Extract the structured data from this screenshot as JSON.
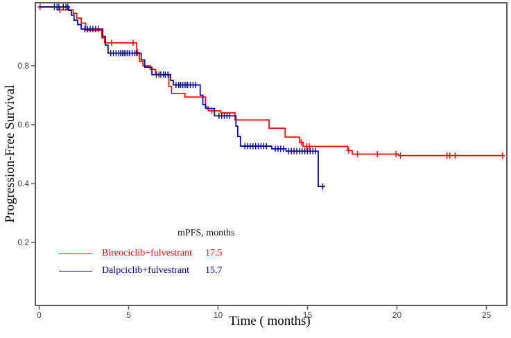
{
  "figure": {
    "background": "#ffffff",
    "frame_color": "#595959",
    "tick_label_color": "#3d3d3d"
  },
  "chart_data": {
    "type": "line",
    "subtype": "kaplan-meier-step",
    "title": "",
    "xlabel": "Time ( months)",
    "ylabel": "Progression-Free Survival",
    "xlim": [
      0,
      26.2
    ],
    "ylim": [
      0,
      1.02
    ],
    "x_ticks": [
      0,
      5,
      10,
      15,
      20,
      25
    ],
    "y_ticks": [
      0.2,
      0.4,
      0.6,
      0.8
    ],
    "grid": false,
    "legend": {
      "header": "mPFS, months",
      "position": "lower-left-inside",
      "entries": [
        {
          "name": "Bireociclib+fulvestrant",
          "mpfs": "17.5",
          "color": "#ff0000"
        },
        {
          "name": "Dalpciclib+fulvestrant",
          "mpfs": "15.7",
          "color": "#00008b"
        }
      ]
    },
    "series": [
      {
        "name": "Bireociclib+fulvestrant",
        "color": "#ff0000",
        "median_pfs_months": 17.5,
        "end": 25.9,
        "steps": [
          [
            0,
            1.0
          ],
          [
            1.0,
            0.99
          ],
          [
            1.9,
            0.978
          ],
          [
            2.1,
            0.962
          ],
          [
            2.35,
            0.945
          ],
          [
            2.6,
            0.92
          ],
          [
            3.5,
            0.895
          ],
          [
            3.65,
            0.878
          ],
          [
            5.45,
            0.845
          ],
          [
            5.6,
            0.815
          ],
          [
            5.8,
            0.8
          ],
          [
            6.2,
            0.788
          ],
          [
            6.5,
            0.77
          ],
          [
            7.25,
            0.73
          ],
          [
            7.4,
            0.706
          ],
          [
            8.15,
            0.694
          ],
          [
            9.3,
            0.66
          ],
          [
            9.45,
            0.647
          ],
          [
            10.15,
            0.64
          ],
          [
            10.95,
            0.616
          ],
          [
            12.85,
            0.588
          ],
          [
            13.75,
            0.558
          ],
          [
            14.55,
            0.54
          ],
          [
            14.75,
            0.526
          ],
          [
            17.25,
            0.512
          ],
          [
            17.5,
            0.5
          ],
          [
            20.1,
            0.495
          ]
        ],
        "censors": [
          [
            0.05,
            1.0
          ],
          [
            1.15,
            0.99
          ],
          [
            4.05,
            0.878
          ],
          [
            5.25,
            0.878
          ],
          [
            5.5,
            0.845
          ],
          [
            9.65,
            0.647
          ],
          [
            14.65,
            0.54
          ],
          [
            14.95,
            0.526
          ],
          [
            15.1,
            0.526
          ],
          [
            17.3,
            0.512
          ],
          [
            17.8,
            0.5
          ],
          [
            18.9,
            0.5
          ],
          [
            19.95,
            0.5
          ],
          [
            20.2,
            0.495
          ],
          [
            22.8,
            0.495
          ],
          [
            22.95,
            0.495
          ],
          [
            23.25,
            0.495
          ],
          [
            25.9,
            0.495
          ]
        ]
      },
      {
        "name": "Dalpciclib+fulvestrant",
        "color": "#00008b",
        "median_pfs_months": 15.7,
        "end": 15.9,
        "steps": [
          [
            0,
            1.0
          ],
          [
            1.65,
            0.988
          ],
          [
            1.8,
            0.972
          ],
          [
            1.95,
            0.955
          ],
          [
            2.15,
            0.94
          ],
          [
            2.35,
            0.925
          ],
          [
            3.55,
            0.9
          ],
          [
            3.7,
            0.87
          ],
          [
            3.85,
            0.843
          ],
          [
            5.7,
            0.82
          ],
          [
            5.9,
            0.795
          ],
          [
            6.3,
            0.77
          ],
          [
            7.35,
            0.75
          ],
          [
            7.5,
            0.735
          ],
          [
            9.0,
            0.7
          ],
          [
            9.15,
            0.668
          ],
          [
            9.3,
            0.655
          ],
          [
            9.8,
            0.63
          ],
          [
            11.0,
            0.595
          ],
          [
            11.1,
            0.56
          ],
          [
            11.25,
            0.527
          ],
          [
            13.0,
            0.518
          ],
          [
            13.8,
            0.51
          ],
          [
            15.6,
            0.39
          ]
        ],
        "censors": [
          [
            0.85,
            1.0
          ],
          [
            1.0,
            1.0
          ],
          [
            1.1,
            1.0
          ],
          [
            1.35,
            1.0
          ],
          [
            1.5,
            1.0
          ],
          [
            1.6,
            1.0
          ],
          [
            2.55,
            0.925
          ],
          [
            2.7,
            0.925
          ],
          [
            2.85,
            0.925
          ],
          [
            3.0,
            0.925
          ],
          [
            3.15,
            0.925
          ],
          [
            3.3,
            0.925
          ],
          [
            4.0,
            0.843
          ],
          [
            4.15,
            0.843
          ],
          [
            4.3,
            0.843
          ],
          [
            4.45,
            0.843
          ],
          [
            4.55,
            0.843
          ],
          [
            4.65,
            0.843
          ],
          [
            4.75,
            0.843
          ],
          [
            4.85,
            0.843
          ],
          [
            4.95,
            0.843
          ],
          [
            5.05,
            0.843
          ],
          [
            5.2,
            0.843
          ],
          [
            5.35,
            0.843
          ],
          [
            5.45,
            0.843
          ],
          [
            6.55,
            0.77
          ],
          [
            6.7,
            0.77
          ],
          [
            6.8,
            0.77
          ],
          [
            6.95,
            0.77
          ],
          [
            7.05,
            0.77
          ],
          [
            7.2,
            0.77
          ],
          [
            7.65,
            0.735
          ],
          [
            7.8,
            0.735
          ],
          [
            7.9,
            0.735
          ],
          [
            8.0,
            0.735
          ],
          [
            8.1,
            0.735
          ],
          [
            8.2,
            0.735
          ],
          [
            8.3,
            0.735
          ],
          [
            8.45,
            0.735
          ],
          [
            8.6,
            0.735
          ],
          [
            8.75,
            0.735
          ],
          [
            10.05,
            0.63
          ],
          [
            10.2,
            0.63
          ],
          [
            10.35,
            0.63
          ],
          [
            10.5,
            0.63
          ],
          [
            10.65,
            0.63
          ],
          [
            11.5,
            0.527
          ],
          [
            11.65,
            0.527
          ],
          [
            11.8,
            0.527
          ],
          [
            11.95,
            0.527
          ],
          [
            12.1,
            0.527
          ],
          [
            12.25,
            0.527
          ],
          [
            12.4,
            0.527
          ],
          [
            12.55,
            0.527
          ],
          [
            12.7,
            0.527
          ],
          [
            13.2,
            0.518
          ],
          [
            13.35,
            0.518
          ],
          [
            13.5,
            0.518
          ],
          [
            13.65,
            0.518
          ],
          [
            13.95,
            0.51
          ],
          [
            14.1,
            0.51
          ],
          [
            14.25,
            0.51
          ],
          [
            14.4,
            0.51
          ],
          [
            14.55,
            0.51
          ],
          [
            14.7,
            0.51
          ],
          [
            14.85,
            0.51
          ],
          [
            15.0,
            0.51
          ],
          [
            15.15,
            0.51
          ],
          [
            15.3,
            0.51
          ],
          [
            15.45,
            0.51
          ],
          [
            15.85,
            0.39
          ]
        ]
      }
    ]
  }
}
